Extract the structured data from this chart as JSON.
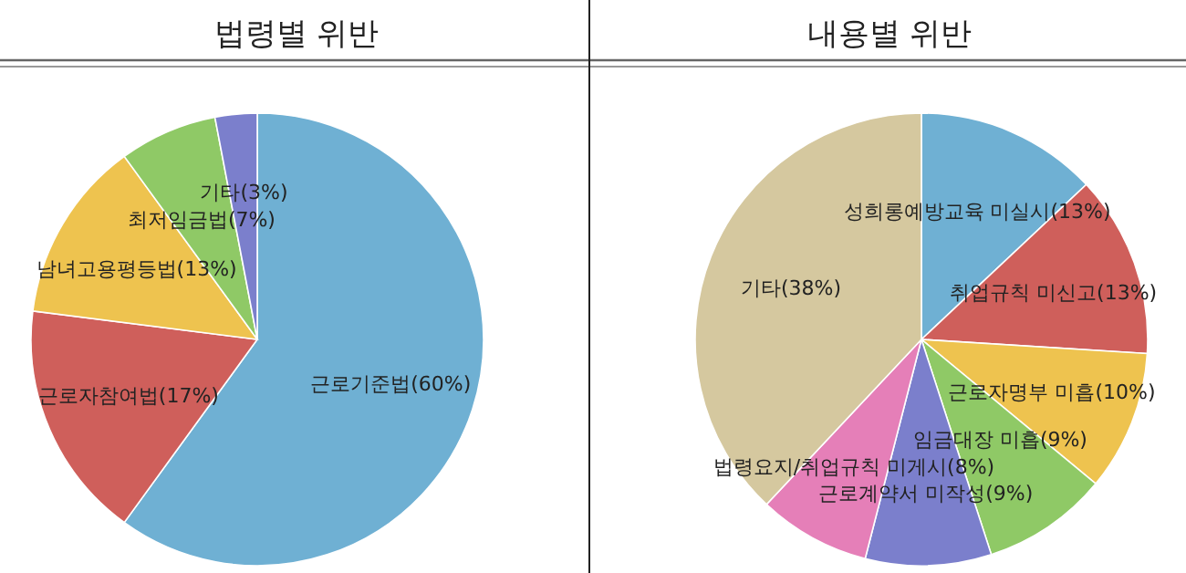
{
  "chart_data": [
    {
      "type": "pie",
      "title": "법령별 위반",
      "categories": [
        "근로기준법",
        "근로자참여법",
        "남녀고용평등법",
        "최저임금법",
        "기타"
      ],
      "values": [
        60,
        17,
        13,
        7,
        3
      ],
      "value_labels": [
        "(60%)",
        "(17%)",
        "(13%)",
        "(7%)",
        "(3%)"
      ],
      "colors": [
        "#6fb0d3",
        "#cf5f5b",
        "#eec34f",
        "#8fc966",
        "#7b7fcc"
      ]
    },
    {
      "type": "pie",
      "title": "내용별 위반",
      "categories": [
        "성희롱예방교육 미실시",
        "취업규칙 미신고",
        "근로자명부 미흡",
        "임금대장 미흡",
        "근로계약서 미작성",
        "법령요지/취업규칙 미게시",
        "기타"
      ],
      "values": [
        13,
        13,
        10,
        9,
        9,
        8,
        38
      ],
      "value_labels": [
        "(13%)",
        "(13%)",
        "(10%)",
        "(9%)",
        "(9%)",
        "(8%)",
        "(38%)"
      ],
      "colors": [
        "#6fb0d3",
        "#cf5f5b",
        "#eec34f",
        "#8fc966",
        "#7b7fcc",
        "#e57fb8",
        "#d5c89f"
      ]
    }
  ]
}
